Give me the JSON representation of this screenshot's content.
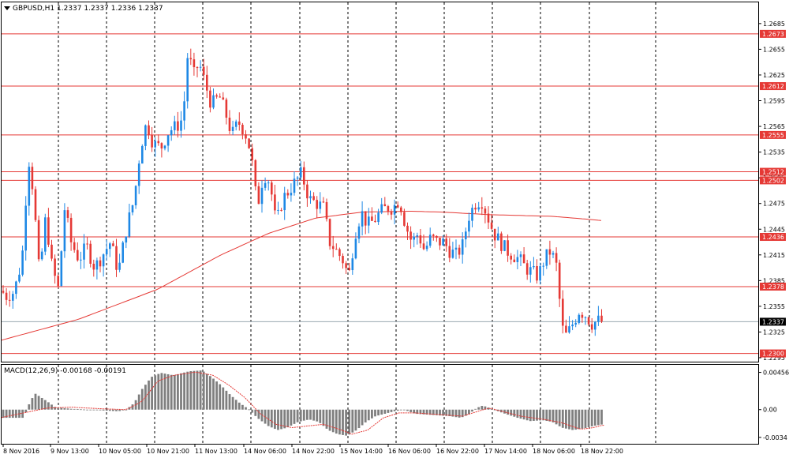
{
  "title": "GBPUSD,H1  1.2337 1.2337 1.2336 1.2337",
  "colors": {
    "up_candle": "#1e88e5",
    "down_candle": "#e53935",
    "level_line": "#e53935",
    "ma_line": "#e53935",
    "current_price_line": "#9aa8b0",
    "macd_hist": "#7f7f7f",
    "macd_signal": "#e53935",
    "tag_bg_red": "#e53935",
    "tag_bg_black": "#000000",
    "grid": "#000000"
  },
  "chart_data": [
    {
      "type": "candlestick",
      "symbol": "GBPUSD",
      "timeframe": "H1",
      "ohlc_header": "1.2337 1.2337 1.2336 1.2337",
      "ylim": [
        1.2295,
        1.2695
      ],
      "y_ticks": [
        "1.2685",
        "1.2655",
        "1.2625",
        "1.2595",
        "1.2565",
        "1.2535",
        "1.2505",
        "1.2475",
        "1.2445",
        "1.2415",
        "1.2385",
        "1.2355",
        "1.2325",
        "1.2295"
      ],
      "x_labels": [
        "8 Nov 2016",
        "9 Nov 13:00",
        "10 Nov 05:00",
        "10 Nov 21:00",
        "11 Nov 13:00",
        "14 Nov 06:00",
        "14 Nov 22:00",
        "15 Nov 14:00",
        "16 Nov 06:00",
        "16 Nov 22:00",
        "17 Nov 14:00",
        "18 Nov 06:00",
        "18 Nov 22:00"
      ],
      "horizontal_levels": [
        "1.2673",
        "1.2612",
        "1.2555",
        "1.2512",
        "1.2502",
        "1.2436",
        "1.2378",
        "1.2300"
      ],
      "current_price": "1.2337",
      "grid": "vertical-dashed",
      "close_path": [
        [
          0,
          1.2375
        ],
        [
          8,
          1.2367
        ],
        [
          18,
          1.2372
        ],
        [
          28,
          1.241
        ],
        [
          36,
          1.253
        ],
        [
          42,
          1.249
        ],
        [
          50,
          1.239
        ],
        [
          58,
          1.246
        ],
        [
          66,
          1.24
        ],
        [
          74,
          1.2375
        ],
        [
          82,
          1.247
        ],
        [
          90,
          1.243
        ],
        [
          100,
          1.241
        ],
        [
          110,
          1.2425
        ],
        [
          120,
          1.24
        ],
        [
          130,
          1.2415
        ],
        [
          140,
          1.243
        ],
        [
          150,
          1.2395
        ],
        [
          160,
          1.2445
        ],
        [
          170,
          1.248
        ],
        [
          178,
          1.254
        ],
        [
          186,
          1.257
        ],
        [
          194,
          1.2545
        ],
        [
          204,
          1.254
        ],
        [
          214,
          1.256
        ],
        [
          224,
          1.2565
        ],
        [
          232,
          1.2575
        ],
        [
          238,
          1.265
        ],
        [
          246,
          1.2625
        ],
        [
          252,
          1.264
        ],
        [
          260,
          1.2615
        ],
        [
          268,
          1.259
        ],
        [
          278,
          1.26
        ],
        [
          286,
          1.258
        ],
        [
          294,
          1.2555
        ],
        [
          302,
          1.257
        ],
        [
          310,
          1.256
        ],
        [
          318,
          1.2535
        ],
        [
          326,
          1.247
        ],
        [
          334,
          1.251
        ],
        [
          342,
          1.25
        ],
        [
          350,
          1.245
        ],
        [
          358,
          1.248
        ],
        [
          366,
          1.249
        ],
        [
          374,
          1.25
        ],
        [
          382,
          1.251
        ],
        [
          392,
          1.248
        ],
        [
          402,
          1.2475
        ],
        [
          410,
          1.247
        ],
        [
          418,
          1.243
        ],
        [
          426,
          1.242
        ],
        [
          434,
          1.241
        ],
        [
          442,
          1.239
        ],
        [
          450,
          1.244
        ],
        [
          458,
          1.2465
        ],
        [
          466,
          1.245
        ],
        [
          474,
          1.2455
        ],
        [
          482,
          1.2465
        ],
        [
          490,
          1.247
        ],
        [
          498,
          1.247
        ],
        [
          506,
          1.248
        ],
        [
          514,
          1.245
        ],
        [
          522,
          1.243
        ],
        [
          530,
          1.244
        ],
        [
          538,
          1.242
        ],
        [
          546,
          1.2435
        ],
        [
          554,
          1.243
        ],
        [
          562,
          1.243
        ],
        [
          570,
          1.242
        ],
        [
          578,
          1.2415
        ],
        [
          586,
          1.2425
        ],
        [
          594,
          1.246
        ],
        [
          602,
          1.2475
        ],
        [
          610,
          1.248
        ],
        [
          618,
          1.246
        ],
        [
          626,
          1.244
        ],
        [
          634,
          1.243
        ],
        [
          642,
          1.242
        ],
        [
          650,
          1.2415
        ],
        [
          658,
          1.241
        ],
        [
          666,
          1.24
        ],
        [
          674,
          1.2395
        ],
        [
          682,
          1.239
        ],
        [
          690,
          1.241
        ],
        [
          698,
          1.242
        ],
        [
          706,
          1.24
        ],
        [
          712,
          1.233
        ],
        [
          718,
          1.232
        ],
        [
          726,
          1.2335
        ],
        [
          734,
          1.235
        ],
        [
          742,
          1.2345
        ],
        [
          750,
          1.2335
        ],
        [
          758,
          1.2338
        ],
        [
          764,
          1.2337
        ]
      ],
      "ma_path": [
        [
          0,
          1.2315
        ],
        [
          100,
          1.234
        ],
        [
          200,
          1.2375
        ],
        [
          280,
          1.2415
        ],
        [
          340,
          1.244
        ],
        [
          400,
          1.2458
        ],
        [
          460,
          1.2465
        ],
        [
          520,
          1.2466
        ],
        [
          560,
          1.2465
        ],
        [
          620,
          1.2462
        ],
        [
          700,
          1.246
        ],
        [
          740,
          1.2457
        ],
        [
          764,
          1.2455
        ]
      ]
    },
    {
      "type": "histogram",
      "indicator": "MACD",
      "label": "MACD(12,26,9) -0.00168 -0.00191",
      "ylim": [
        -0.0036,
        0.005
      ],
      "y_ticks": [
        "0.00456",
        "0.00",
        "-0.0034"
      ],
      "hist_path": [
        [
          0,
          -0.001
        ],
        [
          30,
          -0.001
        ],
        [
          36,
          0.0005
        ],
        [
          44,
          0.002
        ],
        [
          52,
          0.0015
        ],
        [
          60,
          0.001
        ],
        [
          70,
          0.0003
        ],
        [
          90,
          0.0001
        ],
        [
          110,
          0.0
        ],
        [
          130,
          -0.0001
        ],
        [
          150,
          -0.0002
        ],
        [
          160,
          0.0
        ],
        [
          170,
          0.0008
        ],
        [
          180,
          0.0025
        ],
        [
          192,
          0.004
        ],
        [
          204,
          0.0045
        ],
        [
          220,
          0.0042
        ],
        [
          240,
          0.0047
        ],
        [
          256,
          0.0048
        ],
        [
          268,
          0.004
        ],
        [
          280,
          0.003
        ],
        [
          292,
          0.0018
        ],
        [
          304,
          0.0008
        ],
        [
          316,
          0.0
        ],
        [
          326,
          -0.001
        ],
        [
          340,
          -0.002
        ],
        [
          352,
          -0.0025
        ],
        [
          364,
          -0.0022
        ],
        [
          378,
          -0.0015
        ],
        [
          392,
          -0.0012
        ],
        [
          404,
          -0.0015
        ],
        [
          416,
          -0.0025
        ],
        [
          428,
          -0.003
        ],
        [
          440,
          -0.0032
        ],
        [
          452,
          -0.0025
        ],
        [
          464,
          -0.0015
        ],
        [
          476,
          -0.0008
        ],
        [
          488,
          -0.0005
        ],
        [
          500,
          -0.0002
        ],
        [
          512,
          0.0
        ],
        [
          526,
          -0.0005
        ],
        [
          540,
          -0.0006
        ],
        [
          556,
          -0.0007
        ],
        [
          570,
          -0.0008
        ],
        [
          584,
          -0.001
        ],
        [
          594,
          -0.0006
        ],
        [
          604,
          0.0002
        ],
        [
          612,
          0.0005
        ],
        [
          626,
          0.0
        ],
        [
          640,
          -0.0005
        ],
        [
          656,
          -0.001
        ],
        [
          672,
          -0.0014
        ],
        [
          688,
          -0.0013
        ],
        [
          700,
          -0.0015
        ],
        [
          712,
          -0.0022
        ],
        [
          726,
          -0.0025
        ],
        [
          740,
          -0.0023
        ],
        [
          752,
          -0.002
        ],
        [
          764,
          -0.0018
        ]
      ],
      "signal_path": [
        [
          0,
          -0.001
        ],
        [
          40,
          -0.0002
        ],
        [
          60,
          0.0002
        ],
        [
          90,
          0.0003
        ],
        [
          130,
          0.0001
        ],
        [
          160,
          0.0
        ],
        [
          180,
          0.001
        ],
        [
          200,
          0.0035
        ],
        [
          220,
          0.0042
        ],
        [
          248,
          0.0046
        ],
        [
          270,
          0.0042
        ],
        [
          290,
          0.003
        ],
        [
          310,
          0.0015
        ],
        [
          330,
          -0.0005
        ],
        [
          350,
          -0.0018
        ],
        [
          370,
          -0.0022
        ],
        [
          390,
          -0.002
        ],
        [
          410,
          -0.0018
        ],
        [
          430,
          -0.0024
        ],
        [
          446,
          -0.003
        ],
        [
          466,
          -0.0025
        ],
        [
          486,
          -0.001
        ],
        [
          506,
          -0.0004
        ],
        [
          526,
          -0.0004
        ],
        [
          556,
          -0.0006
        ],
        [
          586,
          -0.0008
        ],
        [
          606,
          -0.0002
        ],
        [
          620,
          0.0002
        ],
        [
          640,
          -0.0003
        ],
        [
          660,
          -0.0008
        ],
        [
          690,
          -0.0012
        ],
        [
          712,
          -0.0016
        ],
        [
          736,
          -0.0024
        ],
        [
          752,
          -0.0022
        ],
        [
          764,
          -0.0019
        ]
      ]
    }
  ]
}
